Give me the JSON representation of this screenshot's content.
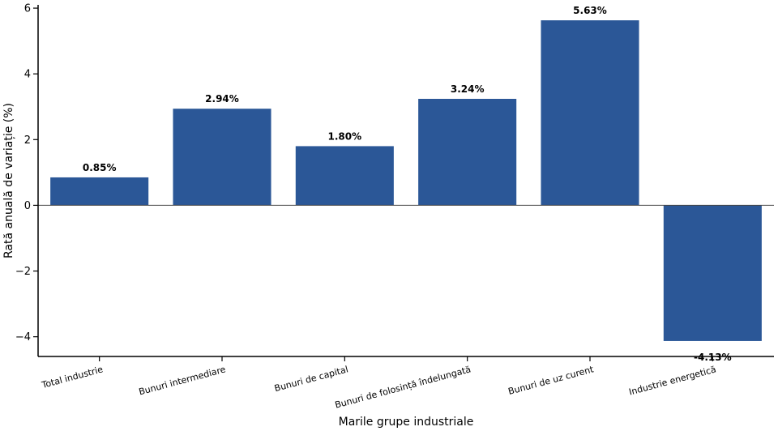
{
  "chart_data": {
    "type": "bar",
    "title": "",
    "xlabel": "Marile grupe industriale",
    "ylabel": "Rată anuală de variație (%)",
    "categories": [
      "Total industrie",
      "Bunuri intermediare",
      "Bunuri de capital",
      "Bunuri de folosință îndelungată",
      "Bunuri de uz curent",
      "Industrie energetică"
    ],
    "values": [
      0.85,
      2.94,
      1.8,
      3.24,
      5.63,
      -4.13
    ],
    "value_labels": [
      "0.85%",
      "2.94%",
      "1.80%",
      "3.24%",
      "5.63%",
      "-4.13%"
    ],
    "ylim": [
      -4.6,
      6.1
    ],
    "yticks": [
      -4,
      -2,
      0,
      2,
      4,
      6
    ],
    "ytick_labels": [
      "−4",
      "−2",
      "0",
      "2",
      "4",
      "6"
    ],
    "bar_color": "#2b5797",
    "grid": false,
    "zero_line": true
  }
}
